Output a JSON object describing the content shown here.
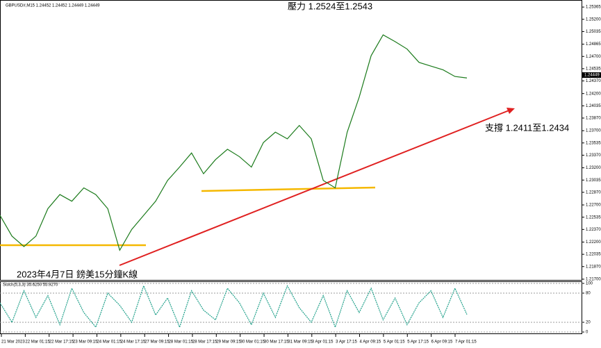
{
  "chart_data": [
    {
      "type": "line",
      "header": "GBPUSD#,M15  1.24452 1.24452 1.24449 1.24449",
      "annotations": [
        "壓力 1.2524至1.2543",
        "支撐 1.2411至1.2434",
        "2023年4月7日 鎊美15分鐘K線"
      ],
      "series": [
        {
          "color": "#1a7a1a",
          "values": [
            1.2256,
            1.2228,
            1.2214,
            1.2228,
            1.2265,
            1.2284,
            1.2275,
            1.2293,
            1.2284,
            1.2265,
            1.2209,
            1.2237,
            1.2256,
            1.2275,
            1.2303,
            1.2321,
            1.234,
            1.2312,
            1.2331,
            1.2345,
            1.2335,
            1.2321,
            1.2354,
            1.2368,
            1.2359,
            1.2377,
            1.2359,
            1.2303,
            1.2293,
            1.2368,
            1.2415,
            1.2471,
            1.2499,
            1.249,
            1.248,
            1.2462,
            1.2457,
            1.2452,
            1.2443,
            1.2441
          ]
        }
      ],
      "ylim": [
        1.2169,
        1.2546
      ],
      "yticks": [
        {
          "value": 1.25365,
          "label": "1.25365"
        },
        {
          "value": 1.252,
          "label": "1.25200"
        },
        {
          "value": 1.25035,
          "label": "1.25035"
        },
        {
          "value": 1.24865,
          "label": "1.24865"
        },
        {
          "value": 1.247,
          "label": "1.24700"
        },
        {
          "value": 1.24535,
          "label": "1.24535"
        },
        {
          "value": 1.2437,
          "label": "1.24370"
        },
        {
          "value": 1.242,
          "label": "1.24200"
        },
        {
          "value": 1.24035,
          "label": "1.24035"
        },
        {
          "value": 1.2387,
          "label": "1.23870"
        },
        {
          "value": 1.237,
          "label": "1.23700"
        },
        {
          "value": 1.23535,
          "label": "1.23535"
        },
        {
          "value": 1.2337,
          "label": "1.23370"
        },
        {
          "value": 1.232,
          "label": "1.23200"
        },
        {
          "value": 1.23035,
          "label": "1.23035"
        },
        {
          "value": 1.2287,
          "label": "1.22870"
        },
        {
          "value": 1.227,
          "label": "1.22700"
        },
        {
          "value": 1.22535,
          "label": "1.22535"
        },
        {
          "value": 1.2237,
          "label": "1.22370"
        },
        {
          "value": 1.222,
          "label": "1.22200"
        },
        {
          "value": 1.22035,
          "label": "1.22035"
        },
        {
          "value": 1.2187,
          "label": "1.21870"
        },
        {
          "value": 1.217,
          "label": "1.21700"
        }
      ],
      "current_price": {
        "value": 1.24449,
        "label": "1.24449"
      },
      "x_labels": [
        "21 Mar 2023",
        "22 Mar 01:15",
        "22 Mar 17:15",
        "23 Mar 09:15",
        "24 Mar 01:15",
        "24 Mar 17:15",
        "27 Mar 09:15",
        "28 Mar 01:15",
        "28 Mar 17:15",
        "29 Mar 09:15",
        "30 Mar 01:15",
        "30 Mar 17:15",
        "31 Mar 09:15",
        "3 Apr 01:15",
        "3 Apr 17:15",
        "4 Apr 09:15",
        "5 Apr 01:15",
        "5 Apr 17:15",
        "6 Apr 09:15",
        "7 Apr 01:15"
      ]
    },
    {
      "type": "line",
      "title": "Stoch(5,3,3) 35.6250 55.9270",
      "series": [
        {
          "color": "#1fa08a",
          "values": [
            60,
            20,
            85,
            30,
            75,
            15,
            90,
            40,
            10,
            80,
            55,
            20,
            95,
            35,
            70,
            10,
            85,
            45,
            25,
            90,
            60,
            15,
            80,
            30,
            95,
            50,
            20,
            75,
            10,
            85,
            40,
            90,
            25,
            70,
            15,
            60,
            85,
            30,
            90,
            36
          ]
        }
      ],
      "ylim": [
        0,
        100
      ],
      "yticks": [
        100,
        80,
        20,
        0
      ]
    }
  ]
}
